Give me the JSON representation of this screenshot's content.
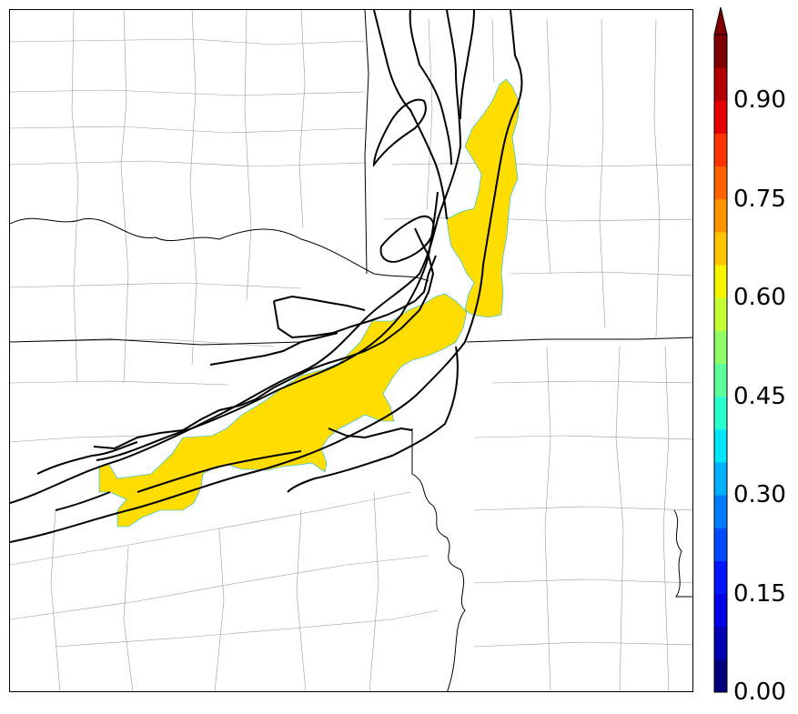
{
  "colorbar": {
    "ticks": [
      "0.00",
      "0.15",
      "0.30",
      "0.45",
      "0.60",
      "0.75",
      "0.90"
    ],
    "tick_values": [
      0.0,
      0.15,
      0.3,
      0.45,
      0.6,
      0.75,
      0.9
    ],
    "range": [
      0.0,
      1.0
    ],
    "extend": "max",
    "colors": [
      "#00007f",
      "#0000b2",
      "#0000e5",
      "#0015ff",
      "#0049ff",
      "#007dff",
      "#00b1ff",
      "#00e5f7",
      "#29ffce",
      "#5cff9a",
      "#90ff66",
      "#c4ff33",
      "#f7f400",
      "#ffc400",
      "#ff9400",
      "#ff6300",
      "#ff3300",
      "#e50000",
      "#b20000",
      "#7f0000"
    ]
  },
  "map": {
    "probability_fill_color": "#ffdd00",
    "probability_fill_value": 0.65,
    "ensemble_contour_color": "#000000",
    "boundary_color": "#000000",
    "county_line_color": "#999999"
  }
}
